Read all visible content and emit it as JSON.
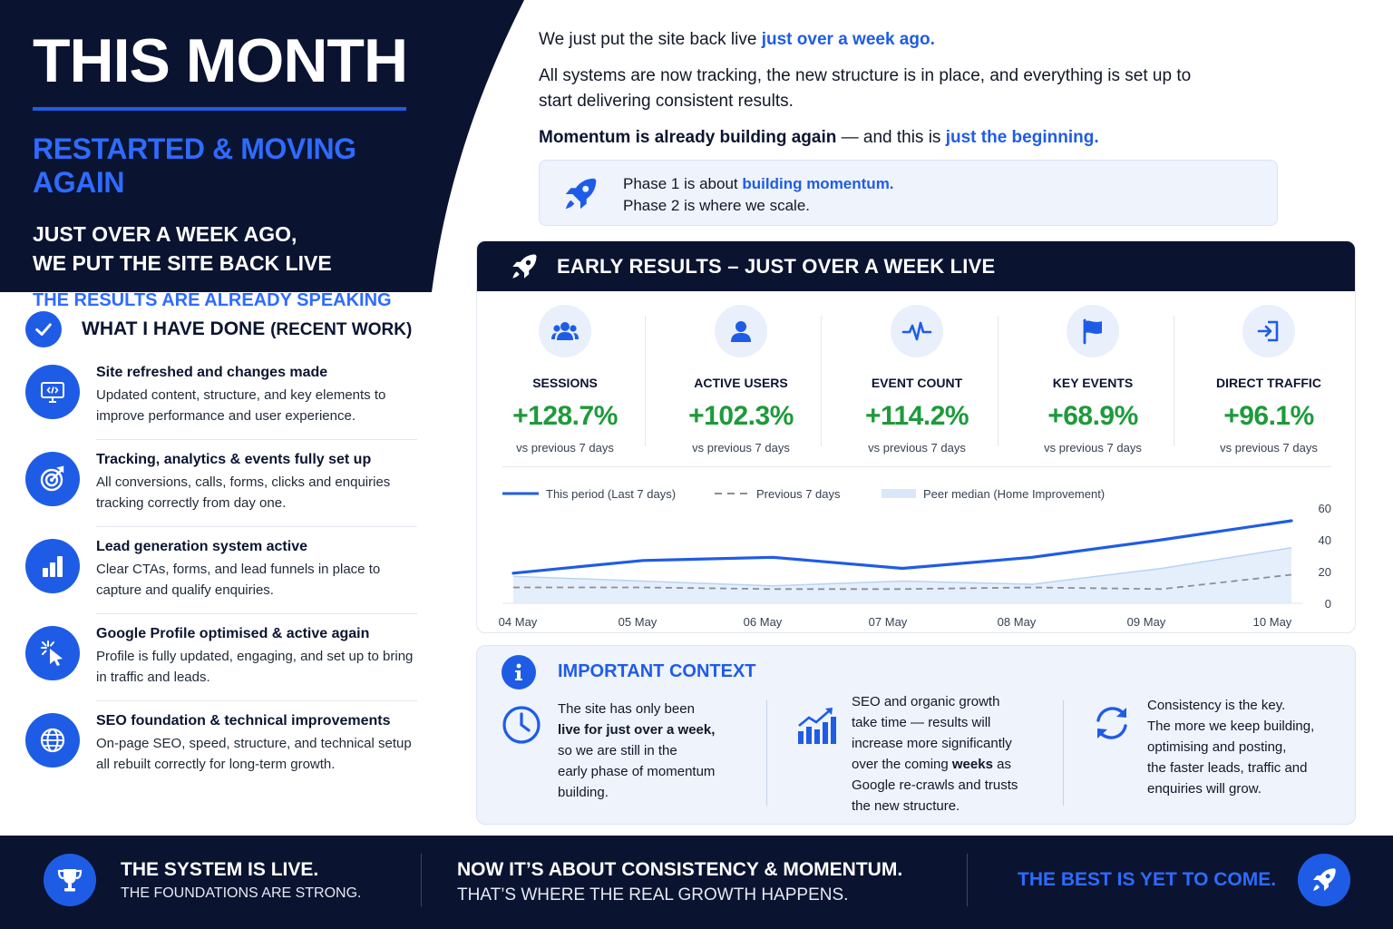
{
  "hero": {
    "title": "THIS MONTH",
    "subtitle": "RESTARTED & MOVING AGAIN",
    "line1": "JUST OVER A WEEK AGO,",
    "line2": "WE PUT THE SITE BACK LIVE",
    "tagline": "THE RESULTS ARE ALREADY SPEAKING"
  },
  "intro": {
    "p1_prefix": "We just put the site back live ",
    "p1_highlight": "just over a week ago.",
    "p2": "All systems are now tracking, the new structure is in place, and everything is set up to start delivering consistent results.",
    "p3_bold": "Momentum is already building again",
    "p3_mid": " — and this is ",
    "p3_highlight": "just the beginning."
  },
  "phases": {
    "phase1_prefix": "Phase 1 is about ",
    "phase1_highlight": "building momentum.",
    "phase2": "Phase 2 is where we scale.",
    "icon": "rocket-icon"
  },
  "work": {
    "title": "WHAT I HAVE DONE",
    "title_suffix": "(RECENT WORK)",
    "items": [
      {
        "title": "Site refreshed and changes made",
        "desc": "Updated content, structure, and key elements to improve performance and user experience.",
        "icon": "monitor-code-icon"
      },
      {
        "title": "Tracking, analytics & events fully set up",
        "desc": "All conversions, calls, forms, clicks and enquiries tracking correctly from day one.",
        "icon": "target-icon"
      },
      {
        "title": "Lead generation system active",
        "desc": "Clear CTAs, forms, and lead funnels in place to capture and qualify enquiries.",
        "icon": "bar-chart-icon"
      },
      {
        "title": "Google Profile optimised & active again",
        "desc": "Profile is fully updated, engaging, and set up to bring in traffic and leads.",
        "icon": "cursor-click-icon"
      },
      {
        "title": "SEO foundation & technical improvements",
        "desc": "On-page SEO, speed, structure, and technical setup all rebuilt correctly for long-term growth.",
        "icon": "globe-icon"
      }
    ]
  },
  "results": {
    "title": "EARLY RESULTS – JUST OVER A WEEK LIVE",
    "metrics": [
      {
        "label": "SESSIONS",
        "value": "+128.7%",
        "sub": "vs previous 7 days",
        "icon": "users-icon"
      },
      {
        "label": "ACTIVE USERS",
        "value": "+102.3%",
        "sub": "vs previous 7 days",
        "icon": "user-icon"
      },
      {
        "label": "EVENT COUNT",
        "value": "+114.2%",
        "sub": "vs previous 7 days",
        "icon": "pulse-icon"
      },
      {
        "label": "KEY EVENTS",
        "value": "+68.9%",
        "sub": "vs previous 7 days",
        "icon": "flag-icon"
      },
      {
        "label": "DIRECT TRAFFIC",
        "value": "+96.1%",
        "sub": "vs previous 7 days",
        "icon": "sign-in-icon"
      }
    ]
  },
  "chart_data": {
    "type": "line",
    "x": [
      "04 May",
      "05 May",
      "06 May",
      "07 May",
      "08 May",
      "09 May",
      "10 May"
    ],
    "series": [
      {
        "name": "This period (Last 7 days)",
        "style": "solid",
        "color": "#1f5ce6",
        "values": [
          19,
          27,
          29,
          22,
          29,
          40,
          52
        ]
      },
      {
        "name": "Previous 7 days",
        "style": "dashed",
        "color": "#8a8f99",
        "values": [
          10,
          10,
          9,
          9,
          10,
          9,
          18
        ]
      },
      {
        "name": "Peer median (Home Improvement)",
        "style": "area",
        "color": "#cfe1f7",
        "values": [
          17,
          14,
          11,
          14,
          12,
          22,
          35
        ]
      }
    ],
    "yticks": [
      0,
      20,
      40,
      60
    ],
    "ylim": [
      0,
      60
    ],
    "grid": false,
    "legend_position": "top-left",
    "y_axis_side": "right"
  },
  "context": {
    "title": "IMPORTANT CONTEXT",
    "col1": {
      "a": "The site has only been",
      "b_bold": "live for just over a week,",
      "c": "so we are still in the",
      "d": "early phase of momentum",
      "e": "building.",
      "icon": "clock-icon"
    },
    "col2": {
      "a": "SEO and organic growth",
      "b": "take time — results will",
      "c": "increase more significantly",
      "d_pre": "over the coming ",
      "d_bold": "weeks",
      "d_post": " as",
      "e": "Google re-crawls and trusts",
      "f": "the new structure.",
      "icon": "growth-chart-icon"
    },
    "col3": {
      "a": "Consistency is the key.",
      "b": "The more we keep building,",
      "c": "optimising and posting,",
      "d": "the faster leads, traffic and",
      "e": "enquiries will grow.",
      "icon": "refresh-icon"
    }
  },
  "footer": {
    "left_title": "THE SYSTEM IS LIVE.",
    "left_sub": "THE FOUNDATIONS ARE STRONG.",
    "mid_title": "NOW IT’S ABOUT CONSISTENCY & MOMENTUM.",
    "mid_sub": "THAT’S WHERE THE REAL GROWTH HAPPENS.",
    "right": "THE BEST IS YET TO COME.",
    "icons": [
      "trophy-icon",
      "rocket-icon"
    ]
  },
  "colors": {
    "navy": "#0a1330",
    "accent": "#1f5ce6",
    "positive": "#1e9a3a",
    "panel": "#eef3fc"
  }
}
